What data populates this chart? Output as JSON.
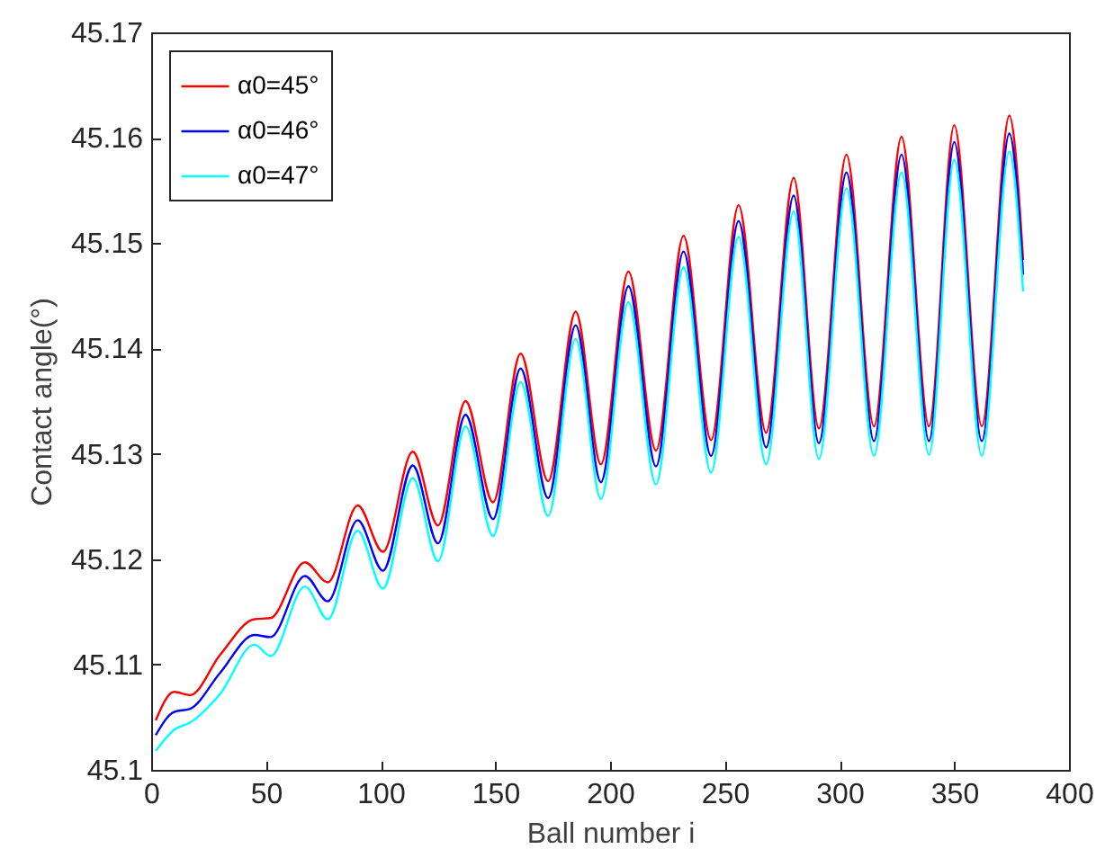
{
  "chart_data": {
    "type": "line",
    "xlabel": "Ball number i",
    "ylabel": "Contact angle(°)",
    "xlim": [
      0,
      400
    ],
    "xticks": [
      0,
      50,
      100,
      150,
      200,
      250,
      300,
      350,
      400
    ],
    "ylim": [
      45.1,
      45.17
    ],
    "yticks": [
      45.1,
      45.11,
      45.12,
      45.13,
      45.14,
      45.15,
      45.16,
      45.17
    ],
    "x": [
      2,
      10,
      17,
      30,
      45,
      52,
      67,
      77,
      90,
      101,
      114,
      125,
      137,
      149,
      161,
      173,
      185,
      196,
      208,
      220,
      232,
      244,
      256,
      268,
      280,
      291,
      303,
      315,
      327,
      339,
      350,
      362,
      374,
      380
    ],
    "series": [
      {
        "name": "α0=45°",
        "color": "#ff0000",
        "values": [
          45.1047,
          45.1074,
          45.1071,
          45.1109,
          45.1143,
          45.1144,
          45.1197,
          45.1178,
          45.1251,
          45.1207,
          45.1302,
          45.1232,
          45.135,
          45.1254,
          45.1395,
          45.1274,
          45.1435,
          45.129,
          45.1473,
          45.1303,
          45.1507,
          45.1313,
          45.1536,
          45.132,
          45.1562,
          45.1324,
          45.1584,
          45.1326,
          45.1601,
          45.1326,
          45.1612,
          45.1326,
          45.1621,
          45.1484
        ]
      },
      {
        "name": "α0=46°",
        "color": "#0000ff",
        "values": [
          45.1033,
          45.1055,
          45.1058,
          45.1092,
          45.1128,
          45.1126,
          45.1184,
          45.116,
          45.1237,
          45.1189,
          45.1289,
          45.1215,
          45.1337,
          45.1238,
          45.1381,
          45.1258,
          45.1422,
          45.1273,
          45.1459,
          45.1288,
          45.1492,
          45.1298,
          45.1521,
          45.1306,
          45.1545,
          45.131,
          45.1567,
          45.1312,
          45.1584,
          45.1312,
          45.1596,
          45.1312,
          45.1604,
          45.147
        ]
      },
      {
        "name": "α0=47°",
        "color": "#00ffff",
        "values": [
          45.1018,
          45.1038,
          45.1045,
          45.1072,
          45.1119,
          45.1108,
          45.1174,
          45.1143,
          45.1227,
          45.1172,
          45.1277,
          45.1198,
          45.1326,
          45.1222,
          45.1368,
          45.1241,
          45.1409,
          45.1257,
          45.1444,
          45.1271,
          45.1477,
          45.1282,
          45.1506,
          45.129,
          45.153,
          45.1295,
          45.1552,
          45.1298,
          45.1567,
          45.1299,
          45.1579,
          45.1298,
          45.1587,
          45.1454
        ]
      }
    ],
    "grid": false,
    "legend": "top left",
    "marker": "none",
    "line_style": "solid"
  }
}
